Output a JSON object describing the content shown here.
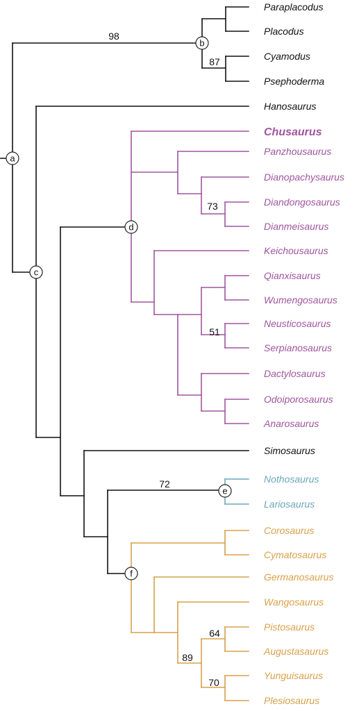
{
  "colors": {
    "outgroup": "#111111",
    "pachypleurosauria": "#a0559e",
    "nothosauridae": "#6aa8b8",
    "pistosauroidea": "#d9a048"
  },
  "taxa": [
    {
      "name": "Paraplacodus",
      "group": "outgroup"
    },
    {
      "name": "Placodus",
      "group": "outgroup"
    },
    {
      "name": "Cyamodus",
      "group": "outgroup"
    },
    {
      "name": "Psephoderma",
      "group": "outgroup"
    },
    {
      "name": "Hanosaurus",
      "group": "outgroup"
    },
    {
      "name": "Chusaurus",
      "group": "pachypleurosauria",
      "bold": true
    },
    {
      "name": "Panzhousaurus",
      "group": "pachypleurosauria"
    },
    {
      "name": "Dianopachysaurus",
      "group": "pachypleurosauria"
    },
    {
      "name": "Diandongosaurus",
      "group": "pachypleurosauria"
    },
    {
      "name": "Dianmeisaurus",
      "group": "pachypleurosauria"
    },
    {
      "name": "Keichousaurus",
      "group": "pachypleurosauria"
    },
    {
      "name": "Qianxisaurus",
      "group": "pachypleurosauria"
    },
    {
      "name": "Wumengosaurus",
      "group": "pachypleurosauria"
    },
    {
      "name": "Neusticosaurus",
      "group": "pachypleurosauria"
    },
    {
      "name": "Serpianosaurus",
      "group": "pachypleurosauria"
    },
    {
      "name": "Dactylosaurus",
      "group": "pachypleurosauria"
    },
    {
      "name": "Odoiporosaurus",
      "group": "pachypleurosauria"
    },
    {
      "name": "Anarosaurus",
      "group": "pachypleurosauria"
    },
    {
      "name": "Simosaurus",
      "group": "outgroup"
    },
    {
      "name": "Nothosaurus",
      "group": "nothosauridae"
    },
    {
      "name": "Lariosaurus",
      "group": "nothosauridae"
    },
    {
      "name": "Corosaurus",
      "group": "pistosauroidea"
    },
    {
      "name": "Cymatosaurus",
      "group": "pistosauroidea"
    },
    {
      "name": "Germanosaurus",
      "group": "pistosauroidea"
    },
    {
      "name": "Wangosaurus",
      "group": "pistosauroidea"
    },
    {
      "name": "Pistosaurus",
      "group": "pistosauroidea"
    },
    {
      "name": "Augustasaurus",
      "group": "pistosauroidea"
    },
    {
      "name": "Yunguisaurus",
      "group": "pistosauroidea"
    },
    {
      "name": "Plesiosaurus",
      "group": "pistosauroidea"
    }
  ],
  "support_values": [
    "98",
    "87",
    "73",
    "51",
    "72",
    "89",
    "64",
    "70"
  ],
  "node_labels": [
    "a",
    "b",
    "c",
    "d",
    "e",
    "f"
  ]
}
